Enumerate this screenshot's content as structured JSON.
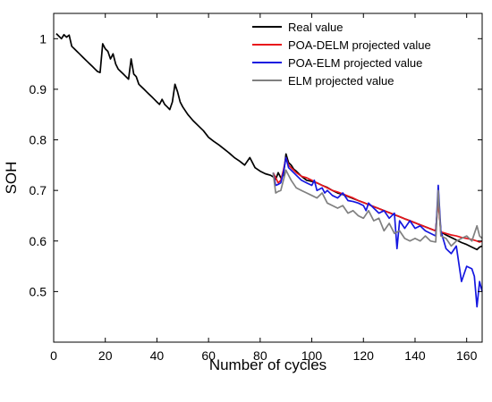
{
  "chart_data": {
    "type": "line",
    "title": "",
    "xlabel": "Number of cycles",
    "ylabel": "SOH",
    "xlim": [
      0,
      166
    ],
    "ylim": [
      0.4,
      1.05
    ],
    "xticks": [
      0,
      20,
      40,
      60,
      80,
      100,
      120,
      140,
      160
    ],
    "yticks": [
      0.5,
      0.6,
      0.7,
      0.8,
      0.9,
      1
    ],
    "ytick_labels": [
      "0.5",
      "0.6",
      "0.7",
      "0.8",
      "0.9",
      "1"
    ],
    "grid": false,
    "legend_position": "top-right",
    "series": [
      {
        "name": "Real value",
        "color": "#000000",
        "x": [
          1,
          2,
          3,
          4,
          5,
          6,
          7,
          8,
          9,
          10,
          11,
          12,
          13,
          14,
          15,
          16,
          17,
          18,
          19,
          20,
          21,
          22,
          23,
          24,
          25,
          26,
          27,
          28,
          29,
          30,
          31,
          32,
          33,
          34,
          35,
          36,
          37,
          38,
          39,
          40,
          41,
          42,
          43,
          44,
          45,
          46,
          47,
          48,
          49,
          50,
          52,
          54,
          56,
          58,
          60,
          62,
          64,
          66,
          68,
          70,
          72,
          74,
          76,
          78,
          80,
          82,
          84,
          85,
          86,
          87,
          88,
          89,
          90,
          91,
          92,
          93,
          94,
          95,
          96,
          98,
          100,
          102,
          104,
          106,
          108,
          110,
          112,
          114,
          116,
          118,
          120,
          122,
          124,
          126,
          128,
          130,
          132,
          134,
          136,
          138,
          140,
          142,
          144,
          146,
          148,
          149,
          150,
          152,
          154,
          156,
          158,
          160,
          162,
          164,
          165,
          166
        ],
        "y": [
          1.01,
          1.005,
          1.0,
          1.008,
          1.003,
          1.007,
          0.985,
          0.98,
          0.975,
          0.97,
          0.965,
          0.96,
          0.955,
          0.95,
          0.945,
          0.94,
          0.935,
          0.933,
          0.99,
          0.98,
          0.975,
          0.96,
          0.97,
          0.95,
          0.94,
          0.935,
          0.93,
          0.925,
          0.92,
          0.96,
          0.93,
          0.925,
          0.91,
          0.905,
          0.9,
          0.895,
          0.89,
          0.885,
          0.88,
          0.875,
          0.87,
          0.88,
          0.87,
          0.865,
          0.86,
          0.875,
          0.91,
          0.895,
          0.875,
          0.865,
          0.85,
          0.838,
          0.828,
          0.818,
          0.805,
          0.797,
          0.79,
          0.782,
          0.774,
          0.765,
          0.758,
          0.75,
          0.765,
          0.745,
          0.738,
          0.733,
          0.73,
          0.727,
          0.722,
          0.735,
          0.725,
          0.73,
          0.772,
          0.755,
          0.75,
          0.742,
          0.738,
          0.733,
          0.728,
          0.72,
          0.718,
          0.715,
          0.71,
          0.706,
          0.7,
          0.695,
          0.692,
          0.688,
          0.684,
          0.68,
          0.676,
          0.672,
          0.668,
          0.664,
          0.66,
          0.656,
          0.652,
          0.648,
          0.644,
          0.64,
          0.636,
          0.632,
          0.628,
          0.624,
          0.62,
          0.685,
          0.618,
          0.612,
          0.607,
          0.602,
          0.597,
          0.593,
          0.588,
          0.583,
          0.588,
          0.59
        ]
      },
      {
        "name": "POA-DELM projected value",
        "color": "#e8141b",
        "x": [
          85,
          86,
          87,
          88,
          89,
          90,
          91,
          92,
          94,
          96,
          98,
          100,
          102,
          104,
          106,
          108,
          110,
          112,
          114,
          116,
          118,
          120,
          122,
          124,
          126,
          128,
          130,
          132,
          134,
          136,
          138,
          140,
          142,
          144,
          146,
          148,
          149,
          150,
          152,
          154,
          156,
          158,
          160,
          162,
          164,
          165,
          166
        ],
        "y": [
          0.735,
          0.725,
          0.715,
          0.72,
          0.74,
          0.765,
          0.75,
          0.745,
          0.735,
          0.728,
          0.725,
          0.72,
          0.715,
          0.71,
          0.705,
          0.7,
          0.697,
          0.693,
          0.689,
          0.685,
          0.68,
          0.676,
          0.672,
          0.668,
          0.664,
          0.66,
          0.656,
          0.652,
          0.648,
          0.644,
          0.64,
          0.636,
          0.632,
          0.628,
          0.624,
          0.62,
          0.68,
          0.618,
          0.615,
          0.612,
          0.61,
          0.607,
          0.605,
          0.603,
          0.6,
          0.598,
          0.6
        ]
      },
      {
        "name": "POA-ELM projected value",
        "color": "#1517e0",
        "x": [
          85,
          86,
          87,
          88,
          89,
          90,
          91,
          92,
          94,
          96,
          98,
          100,
          101,
          102,
          104,
          105,
          106,
          108,
          110,
          112,
          114,
          116,
          118,
          120,
          121,
          122,
          124,
          126,
          128,
          130,
          132,
          133,
          134,
          136,
          138,
          140,
          142,
          144,
          146,
          148,
          149,
          150,
          152,
          154,
          156,
          158,
          160,
          162,
          163,
          164,
          165,
          166
        ],
        "y": [
          0.735,
          0.71,
          0.712,
          0.715,
          0.735,
          0.765,
          0.745,
          0.74,
          0.73,
          0.72,
          0.715,
          0.71,
          0.72,
          0.7,
          0.705,
          0.695,
          0.7,
          0.69,
          0.685,
          0.695,
          0.68,
          0.678,
          0.675,
          0.67,
          0.66,
          0.675,
          0.665,
          0.655,
          0.66,
          0.645,
          0.655,
          0.585,
          0.64,
          0.625,
          0.64,
          0.625,
          0.63,
          0.62,
          0.615,
          0.61,
          0.71,
          0.62,
          0.585,
          0.575,
          0.59,
          0.52,
          0.55,
          0.545,
          0.53,
          0.47,
          0.52,
          0.5
        ]
      },
      {
        "name": "ELM projected value",
        "color": "#808080",
        "x": [
          85,
          86,
          87,
          88,
          89,
          90,
          91,
          92,
          94,
          96,
          98,
          100,
          102,
          104,
          106,
          108,
          110,
          112,
          114,
          116,
          118,
          120,
          122,
          124,
          126,
          128,
          130,
          132,
          134,
          136,
          138,
          140,
          142,
          144,
          146,
          148,
          149,
          150,
          152,
          154,
          156,
          158,
          160,
          162,
          164,
          165,
          166
        ],
        "y": [
          0.735,
          0.695,
          0.698,
          0.7,
          0.72,
          0.74,
          0.73,
          0.72,
          0.705,
          0.7,
          0.695,
          0.69,
          0.685,
          0.695,
          0.675,
          0.67,
          0.665,
          0.67,
          0.655,
          0.66,
          0.65,
          0.645,
          0.66,
          0.64,
          0.645,
          0.62,
          0.635,
          0.615,
          0.62,
          0.605,
          0.6,
          0.605,
          0.6,
          0.61,
          0.6,
          0.598,
          0.7,
          0.61,
          0.605,
          0.59,
          0.6,
          0.605,
          0.61,
          0.6,
          0.63,
          0.61,
          0.605
        ]
      }
    ]
  }
}
